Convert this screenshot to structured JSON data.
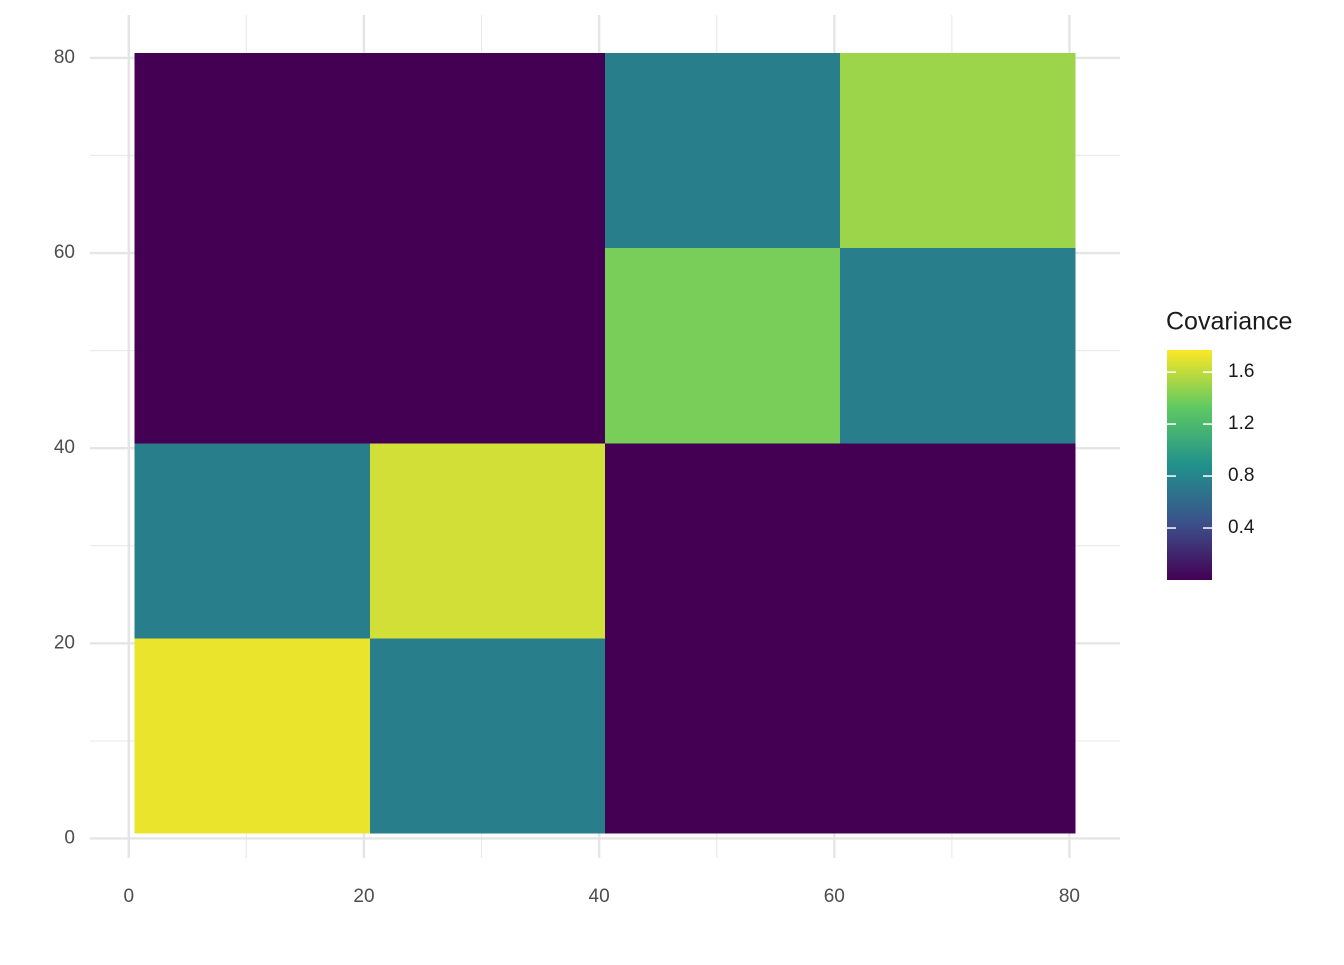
{
  "chart_data": {
    "type": "heatmap",
    "x_bins": [
      0.5,
      20.5,
      40.5,
      60.5,
      80.5
    ],
    "y_bins": [
      0.5,
      20.5,
      40.5,
      60.5,
      80.5
    ],
    "values": [
      [
        1.72,
        0.75,
        0.0,
        0.0
      ],
      [
        0.75,
        1.65,
        0.0,
        0.0
      ],
      [
        0.0,
        0.0,
        1.4,
        0.75
      ],
      [
        0.0,
        0.0,
        0.75,
        1.5
      ]
    ],
    "xlim": [
      -3.3,
      84.3
    ],
    "ylim": [
      -2,
      84.4
    ],
    "xticks": [
      0,
      20,
      40,
      60,
      80
    ],
    "yticks": [
      0,
      20,
      40,
      60,
      80
    ],
    "minor_xticks": [
      10,
      30,
      50,
      70
    ],
    "minor_yticks": [
      10,
      30,
      50,
      70
    ],
    "grid": true,
    "colorscale": [
      "#440154",
      "#3b528b",
      "#21918c",
      "#5ec962",
      "#fde725"
    ],
    "legend_title": "Covariance",
    "colorlim": [
      0,
      1.77
    ],
    "colorticks": [
      0.4,
      0.8,
      1.2,
      1.6
    ]
  }
}
